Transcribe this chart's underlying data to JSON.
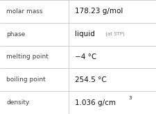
{
  "rows": [
    {
      "label": "molar mass",
      "value": "178.23 g/mol",
      "type": "plain"
    },
    {
      "label": "phase",
      "value": "liquid",
      "suffix": " (at STP)",
      "type": "suffix"
    },
    {
      "label": "melting point",
      "value": "−4 °C",
      "type": "plain"
    },
    {
      "label": "boiling point",
      "value": "254.5 °C",
      "type": "plain"
    },
    {
      "label": "density",
      "value": "1.036 g/cm",
      "superscript": "3",
      "type": "super"
    }
  ],
  "col_split": 0.44,
  "background_color": "#ffffff",
  "line_color": "#bbbbbb",
  "label_color": "#404040",
  "value_color": "#111111",
  "suffix_color": "#888888",
  "label_fontsize": 6.5,
  "value_fontsize": 7.5,
  "suffix_fontsize": 5.0,
  "super_fontsize": 5.0,
  "figsize": [
    2.26,
    1.64
  ],
  "dpi": 100
}
